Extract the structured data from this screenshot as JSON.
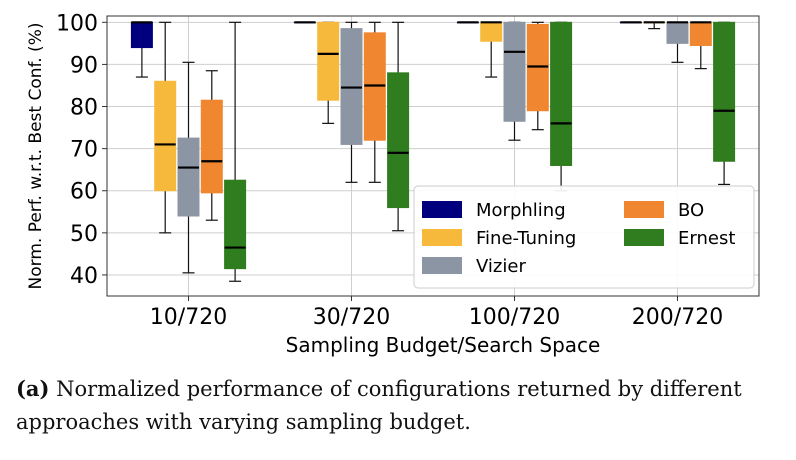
{
  "chart_data": {
    "type": "box",
    "ylabel": "Norm. Perf. w.r.t. Best Conf. (%)",
    "xlabel": "Sampling Budget/Search Space",
    "ylim": [
      35,
      101.5
    ],
    "yticks": [
      40,
      50,
      60,
      70,
      80,
      90,
      100
    ],
    "categories": [
      "10/720",
      "30/720",
      "100/720",
      "200/720"
    ],
    "grid": true,
    "legend_position": "lower-right",
    "series": [
      {
        "name": "Morphling",
        "color": "#00007f",
        "boxes": [
          {
            "whislo": 87,
            "q1": 94,
            "med": 100,
            "q3": 100,
            "whishi": 100
          },
          {
            "whislo": 100,
            "q1": 100,
            "med": 100,
            "q3": 100,
            "whishi": 100
          },
          {
            "whislo": 100,
            "q1": 100,
            "med": 100,
            "q3": 100,
            "whishi": 100
          },
          {
            "whislo": 100,
            "q1": 100,
            "med": 100,
            "q3": 100,
            "whishi": 100
          }
        ]
      },
      {
        "name": "Fine-Tuning",
        "color": "#f6b93b",
        "boxes": [
          {
            "whislo": 50,
            "q1": 60,
            "med": 71,
            "q3": 86,
            "whishi": 100
          },
          {
            "whislo": 76,
            "q1": 81.5,
            "med": 92.5,
            "q3": 100,
            "whishi": 100
          },
          {
            "whislo": 87,
            "q1": 95.5,
            "med": 100,
            "q3": 100,
            "whishi": 100
          },
          {
            "whislo": 98.5,
            "q1": 100,
            "med": 100,
            "q3": 100,
            "whishi": 100
          }
        ]
      },
      {
        "name": "Vizier",
        "color": "#8c95a3",
        "boxes": [
          {
            "whislo": 40.5,
            "q1": 54,
            "med": 65.5,
            "q3": 72.5,
            "whishi": 90.5
          },
          {
            "whislo": 62,
            "q1": 71,
            "med": 84.5,
            "q3": 98.5,
            "whishi": 100
          },
          {
            "whislo": 72,
            "q1": 76.5,
            "med": 93,
            "q3": 100,
            "whishi": 100
          },
          {
            "whislo": 90.5,
            "q1": 95,
            "med": 100,
            "q3": 100,
            "whishi": 100
          }
        ]
      },
      {
        "name": "BO",
        "color": "#f0862f",
        "boxes": [
          {
            "whislo": 53,
            "q1": 59.5,
            "med": 67,
            "q3": 81.5,
            "whishi": 88.5
          },
          {
            "whislo": 62,
            "q1": 72,
            "med": 85,
            "q3": 97.5,
            "whishi": 100
          },
          {
            "whislo": 74.5,
            "q1": 79,
            "med": 89.5,
            "q3": 99.5,
            "whishi": 100
          },
          {
            "whislo": 89,
            "q1": 94.5,
            "med": 100,
            "q3": 100,
            "whishi": 100
          }
        ]
      },
      {
        "name": "Ernest",
        "color": "#2f7d1e",
        "boxes": [
          {
            "whislo": 38.5,
            "q1": 41.5,
            "med": 46.5,
            "q3": 62.5,
            "whishi": 100
          },
          {
            "whislo": 50.5,
            "q1": 56,
            "med": 69,
            "q3": 88,
            "whishi": 100
          },
          {
            "whislo": 60,
            "q1": 66,
            "med": 76,
            "q3": 100,
            "whishi": 100
          },
          {
            "whislo": 61.5,
            "q1": 67,
            "med": 79,
            "q3": 100,
            "whishi": 100
          }
        ]
      }
    ]
  },
  "caption": {
    "label": "(a)",
    "text": " Normalized performance of configurations returned by different approaches with varying sampling budget."
  }
}
